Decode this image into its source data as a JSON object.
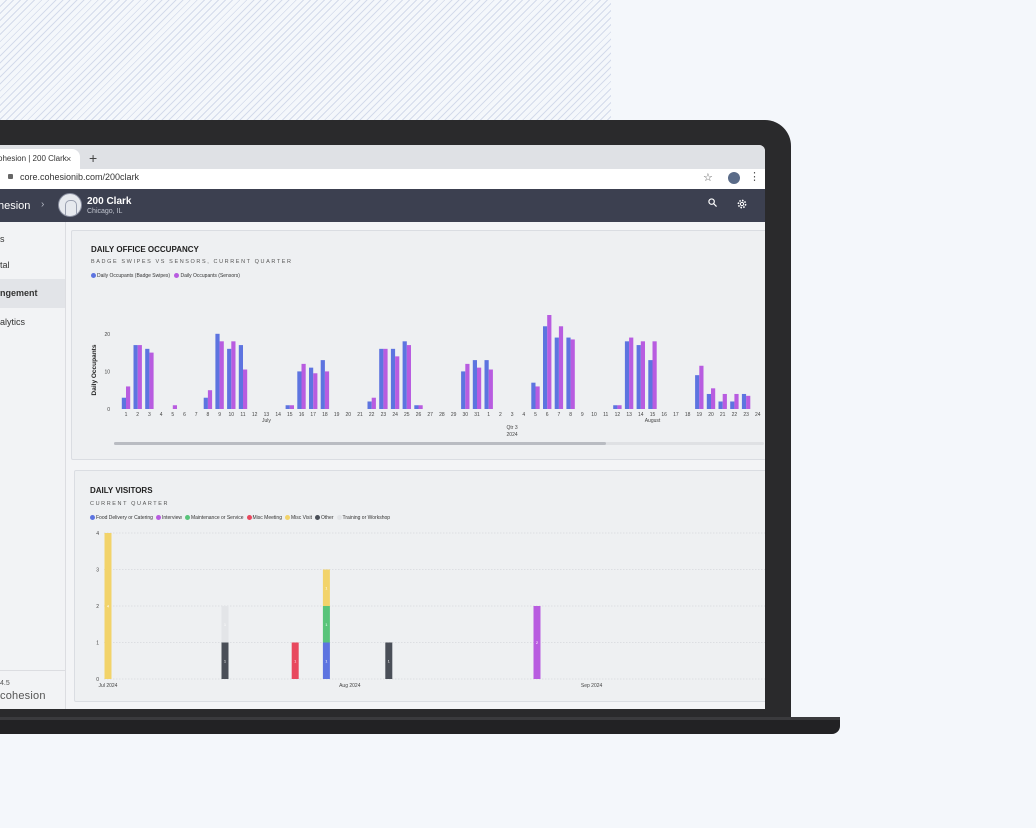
{
  "browser": {
    "tab_title": "ohesion | 200 Clark",
    "tab_close": "×",
    "new_tab": "+",
    "url": "core.cohesionib.com/200clark"
  },
  "app": {
    "brand": "hesion",
    "building_name": "200 Clark",
    "building_city": "Chicago, IL"
  },
  "sidebar": {
    "items": [
      "s",
      "tal",
      "ngement",
      "alytics"
    ],
    "active_index": 2,
    "version": "4.5",
    "logo": "cohesion"
  },
  "occupancy": {
    "title": "DAILY OFFICE OCCUPANCY",
    "subtitle": "BADGE SWIPES VS SENSORS, CURRENT QUARTER",
    "colors": {
      "badge": "#5d74e0",
      "sensors": "#b85ce0"
    },
    "chart_data": {
      "type": "bar",
      "ylabel": "Daily Occupants",
      "ylim": [
        0,
        25
      ],
      "yticks": [
        0,
        10,
        20
      ],
      "x_group_label": "Qtr 3",
      "x_year_label": "2024",
      "month_labels": [
        {
          "label": "July",
          "at": 13
        },
        {
          "label": "August",
          "at": 46
        }
      ],
      "categories": [
        "1",
        "2",
        "3",
        "4",
        "5",
        "6",
        "7",
        "8",
        "9",
        "10",
        "11",
        "12",
        "13",
        "14",
        "15",
        "16",
        "17",
        "18",
        "19",
        "20",
        "21",
        "22",
        "23",
        "24",
        "25",
        "26",
        "27",
        "28",
        "29",
        "30",
        "31",
        "1",
        "2",
        "3",
        "4",
        "5",
        "6",
        "7",
        "8",
        "9",
        "10",
        "11",
        "12",
        "13",
        "14",
        "15",
        "16",
        "17",
        "18",
        "19",
        "20",
        "21",
        "22",
        "23",
        "24"
      ],
      "series": [
        {
          "name": "Daily Occupants (Badge Swipes)",
          "values": [
            3,
            17,
            16,
            0,
            0,
            0,
            0,
            3,
            20,
            16,
            17,
            0,
            0,
            0,
            1,
            10,
            11,
            13,
            0,
            0,
            0,
            2,
            16,
            16,
            18,
            1,
            0,
            0,
            0,
            10,
            13,
            13,
            0,
            0,
            0,
            7,
            22,
            19,
            19,
            0,
            0,
            0,
            1,
            18,
            17,
            13,
            0,
            0,
            0,
            9,
            4,
            2,
            2,
            4,
            0
          ]
        },
        {
          "name": "Daily Occupants (Sensors)",
          "values": [
            6,
            17,
            15,
            0,
            1,
            0,
            0,
            5,
            18,
            18,
            10.5,
            0,
            0,
            0,
            1,
            12,
            9.5,
            10,
            0,
            0,
            0,
            3,
            16,
            14,
            17,
            1,
            0,
            0,
            0,
            12,
            11,
            10.5,
            0,
            0,
            0,
            6,
            25,
            22,
            18.5,
            0,
            0,
            0,
            1,
            19,
            18,
            18,
            0,
            0,
            0,
            11.5,
            5.5,
            4,
            4,
            3.5,
            0
          ]
        }
      ]
    }
  },
  "visitors": {
    "title": "DAILY VISITORS",
    "subtitle": "CURRENT QUARTER",
    "chart_data": {
      "type": "bar",
      "stacked": true,
      "ylim": [
        0,
        4
      ],
      "yticks": [
        0,
        1,
        2,
        3,
        4
      ],
      "x_labels": [
        {
          "label": "Jul 2024",
          "at": 1
        },
        {
          "label": "Aug 2024",
          "at": 32
        },
        {
          "label": "Sep 2024",
          "at": 63
        }
      ],
      "series": [
        {
          "name": "Food Delivery or Catering",
          "color": "#5d74e0"
        },
        {
          "name": "Interview",
          "color": "#b85ce0"
        },
        {
          "name": "Maintenance or Service",
          "color": "#58c47a"
        },
        {
          "name": "Misc Meeting",
          "color": "#e8485e"
        },
        {
          "name": "Misc Visit",
          "color": "#f2d36a"
        },
        {
          "name": "Other",
          "color": "#4a4f58"
        },
        {
          "name": "Training or Workshop",
          "color": "#e3e5e8"
        }
      ],
      "bars": [
        {
          "day": 1,
          "segments": [
            {
              "series": "Misc Visit",
              "value": 4
            }
          ]
        },
        {
          "day": 16,
          "segments": [
            {
              "series": "Other",
              "value": 1
            },
            {
              "series": "Training or Workshop",
              "value": 1
            }
          ]
        },
        {
          "day": 25,
          "segments": [
            {
              "series": "Misc Meeting",
              "value": 1
            }
          ]
        },
        {
          "day": 29,
          "segments": [
            {
              "series": "Food Delivery or Catering",
              "value": 1
            },
            {
              "series": "Maintenance or Service",
              "value": 1
            },
            {
              "series": "Misc Visit",
              "value": 1
            }
          ]
        },
        {
          "day": 37,
          "segments": [
            {
              "series": "Other",
              "value": 1
            }
          ]
        },
        {
          "day": 56,
          "segments": [
            {
              "series": "Interview",
              "value": 2
            }
          ]
        }
      ]
    }
  }
}
